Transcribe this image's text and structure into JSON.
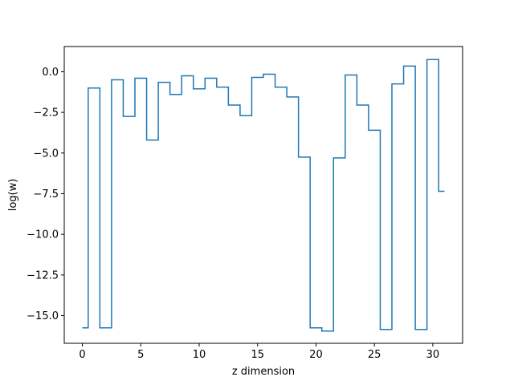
{
  "chart_data": {
    "type": "line",
    "drawstyle": "steps",
    "title": "",
    "xlabel": "z dimension",
    "ylabel": "log(w)",
    "xlim": [
      -1.55,
      32.55
    ],
    "ylim": [
      -16.7,
      1.55
    ],
    "xticks": [
      0,
      5,
      10,
      15,
      20,
      25,
      30
    ],
    "yticks": [
      0.0,
      -2.5,
      -5.0,
      -7.5,
      -10.0,
      -12.5,
      -15.0
    ],
    "ytick_labels": [
      "0.0",
      "−2.5",
      "−5.0",
      "−7.5",
      "−10.0",
      "−12.5",
      "−15.0"
    ],
    "grid": false,
    "series": [
      {
        "color": "#1f77b4",
        "x": [
          0,
          1,
          2,
          3,
          4,
          5,
          6,
          7,
          8,
          9,
          10,
          11,
          12,
          13,
          14,
          15,
          16,
          17,
          18,
          19,
          20,
          21,
          22,
          23,
          24,
          25,
          26,
          27,
          28,
          29,
          30,
          31
        ],
        "values": [
          -15.75,
          -1.0,
          -15.75,
          -0.5,
          -2.75,
          -0.4,
          -4.2,
          -0.65,
          -1.4,
          -0.25,
          -1.05,
          -0.4,
          -0.95,
          -2.05,
          -2.7,
          -0.35,
          -0.15,
          -0.95,
          -1.55,
          -5.25,
          -15.75,
          -15.95,
          -5.3,
          -0.2,
          -2.05,
          -3.6,
          -15.85,
          -0.75,
          0.35,
          -15.85,
          0.75,
          -7.35
        ]
      }
    ]
  }
}
